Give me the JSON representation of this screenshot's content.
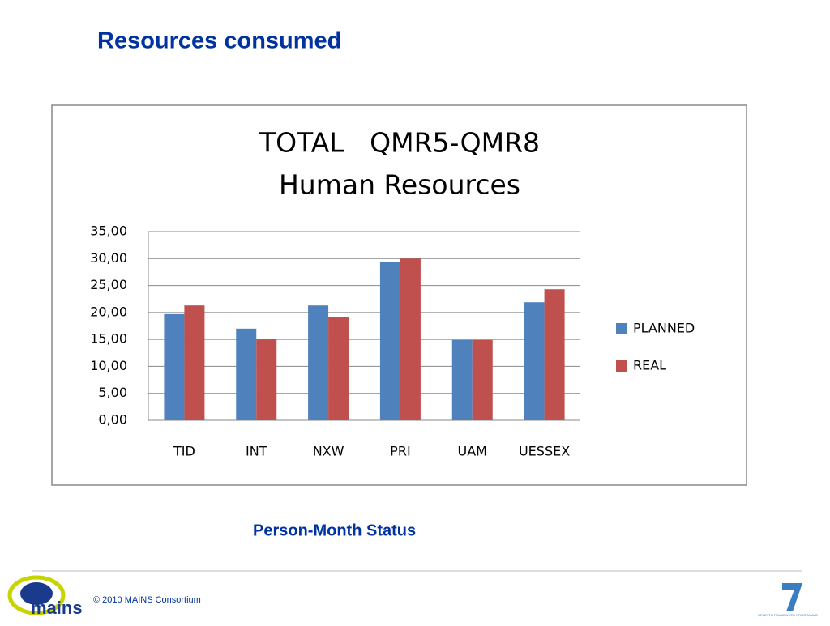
{
  "slide_title": "Resources consumed",
  "caption": "Person-Month Status",
  "footer": {
    "copyright": "© 2010 MAINS Consortium",
    "logo_text": "mains",
    "fp7_text": "SEVENTH FRAMEWORK PROGRAMME"
  },
  "chart_data": {
    "type": "bar",
    "title": "TOTAL   QMR5-QMR8",
    "subtitle": "Human Resources",
    "categories": [
      "TID",
      "INT",
      "NXW",
      "PRI",
      "UAM",
      "UESSEX"
    ],
    "series": [
      {
        "name": "PLANNED",
        "color": "#4f81bd",
        "values": [
          19.7,
          17.0,
          21.3,
          29.3,
          14.9,
          21.9
        ]
      },
      {
        "name": "REAL",
        "color": "#c0504d",
        "values": [
          21.3,
          15.0,
          19.1,
          30.0,
          14.9,
          24.3
        ]
      }
    ],
    "ylim": [
      0,
      35
    ],
    "yticks": [
      {
        "value": 0,
        "label": "0,00"
      },
      {
        "value": 5,
        "label": "5,00"
      },
      {
        "value": 10,
        "label": "10,00"
      },
      {
        "value": 15,
        "label": "15,00"
      },
      {
        "value": 20,
        "label": "20,00"
      },
      {
        "value": 25,
        "label": "25,00"
      },
      {
        "value": 30,
        "label": "30,00"
      },
      {
        "value": 35,
        "label": "35,00"
      }
    ],
    "grid": true,
    "legend": "right"
  }
}
